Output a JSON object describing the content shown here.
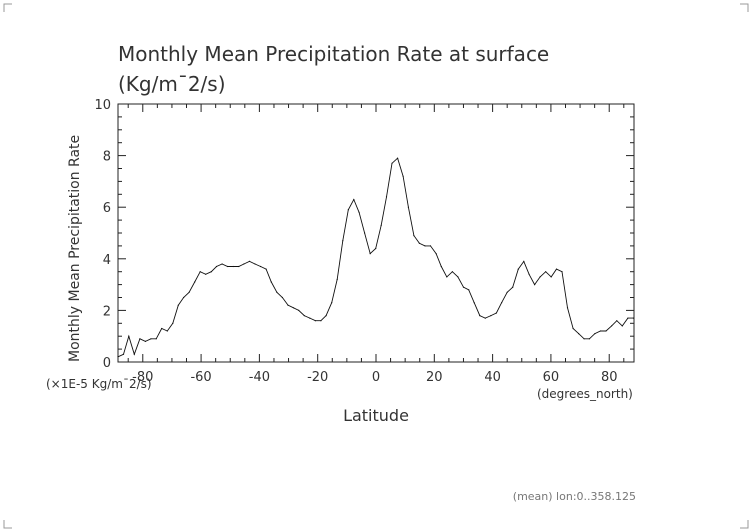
{
  "chart_data": {
    "type": "line",
    "title": "Monthly Mean Precipitation Rate at surface",
    "subtitle": "(Kg/m¯2/s)",
    "ylabel": "Monthly Mean Precipitation Rate",
    "yunit": "(×1E-5 Kg/m¯2/s)",
    "xlabel": "Latitude",
    "xunit": "(degrees_north)",
    "footnote": "(mean) lon:0..358.125",
    "xlim": [
      -88.5,
      88.5
    ],
    "ylim": [
      0,
      10
    ],
    "xticks": [
      -80,
      -60,
      -40,
      -20,
      0,
      20,
      40,
      60,
      80
    ],
    "yticks": [
      0,
      2,
      4,
      6,
      8,
      10
    ],
    "grid": false,
    "series": [
      {
        "x": [
          -88.5,
          -86.6,
          -84.8,
          -82.9,
          -81.0,
          -79.1,
          -77.2,
          -75.4,
          -73.5,
          -71.6,
          -69.7,
          -67.8,
          -66.0,
          -64.1,
          -62.2,
          -60.3,
          -58.4,
          -56.5,
          -54.7,
          -52.8,
          -50.9,
          -49.0,
          -47.1,
          -45.3,
          -43.4,
          -41.5,
          -39.6,
          -37.7,
          -35.9,
          -34.0,
          -32.1,
          -30.2,
          -28.3,
          -26.5,
          -24.6,
          -22.7,
          -20.8,
          -18.9,
          -17.1,
          -15.2,
          -13.3,
          -11.4,
          -9.5,
          -7.6,
          -5.8,
          -3.9,
          -2.0,
          -0.1,
          1.8,
          3.6,
          5.5,
          7.4,
          9.3,
          11.1,
          13.0,
          14.9,
          16.8,
          18.7,
          20.6,
          22.4,
          24.3,
          26.2,
          28.1,
          30.0,
          31.8,
          33.7,
          35.6,
          37.5,
          39.4,
          41.3,
          43.1,
          45.0,
          46.9,
          48.8,
          50.7,
          52.5,
          54.4,
          56.3,
          58.2,
          60.1,
          61.9,
          63.8,
          65.7,
          67.6,
          69.5,
          71.4,
          73.2,
          75.1,
          77.0,
          78.9,
          80.8,
          82.6,
          84.5,
          86.4,
          88.3
        ],
        "values": [
          0.2,
          0.3,
          1.0,
          0.3,
          0.9,
          0.8,
          0.9,
          0.9,
          1.3,
          1.2,
          1.5,
          2.2,
          2.5,
          2.7,
          3.1,
          3.5,
          3.4,
          3.5,
          3.7,
          3.8,
          3.7,
          3.7,
          3.7,
          3.8,
          3.9,
          3.8,
          3.7,
          3.6,
          3.1,
          2.7,
          2.5,
          2.2,
          2.1,
          2.0,
          1.8,
          1.7,
          1.6,
          1.6,
          1.8,
          2.3,
          3.2,
          4.7,
          5.9,
          6.3,
          5.8,
          5.0,
          4.2,
          4.4,
          5.3,
          6.4,
          7.7,
          7.9,
          7.2,
          6.0,
          4.9,
          4.6,
          4.5,
          4.5,
          4.2,
          3.7,
          3.3,
          3.5,
          3.3,
          2.9,
          2.8,
          2.3,
          1.8,
          1.7,
          1.8,
          1.9,
          2.3,
          2.7,
          2.9,
          3.6,
          3.9,
          3.4,
          3.0,
          3.3,
          3.5,
          3.3,
          3.6,
          3.5,
          2.1,
          1.3,
          1.1,
          0.9,
          0.9,
          1.1,
          1.2,
          1.2,
          1.4,
          1.6,
          1.4,
          1.7,
          1.7
        ]
      }
    ]
  }
}
